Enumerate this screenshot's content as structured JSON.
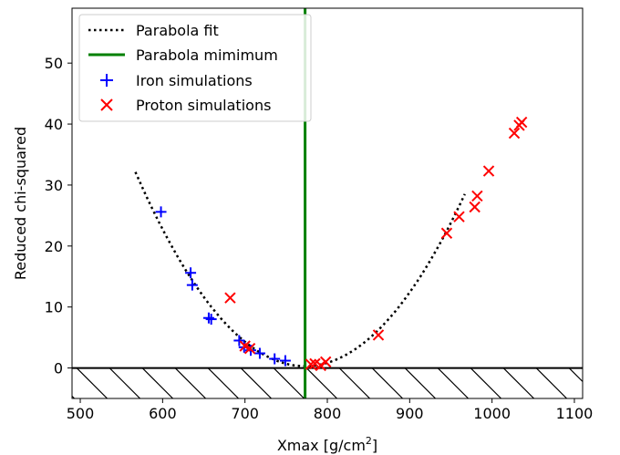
{
  "chart_data": {
    "type": "scatter",
    "title": "",
    "xlabel": "Xmax [g/cm",
    "xlabel_sup": "2",
    "xlabel_close": "]",
    "ylabel": "Reduced chi-squared",
    "xlim": [
      490,
      1110
    ],
    "ylim": [
      -5,
      59
    ],
    "xticks": [
      500,
      600,
      700,
      800,
      900,
      1000,
      1100
    ],
    "yticks": [
      0,
      10,
      20,
      30,
      40,
      50
    ],
    "legend_position": "top-left",
    "hatch_region_below": 0,
    "series": [
      {
        "name": "Parabola fit",
        "kind": "curve",
        "style": "dotted",
        "color": "#000000",
        "vertex_x": 773,
        "vertex_y": 0.3,
        "curvature": 0.00075,
        "x_range": [
          567,
          967
        ]
      },
      {
        "name": "Parabola mimimum",
        "kind": "vline",
        "color": "#008000",
        "x": 773
      },
      {
        "name": "Iron simulations",
        "kind": "marker",
        "marker": "plus",
        "color": "#0000ff",
        "points": [
          [
            598,
            25.6
          ],
          [
            634,
            15.6
          ],
          [
            636,
            13.6
          ],
          [
            656,
            8.2
          ],
          [
            659,
            8.0
          ],
          [
            693,
            4.5
          ],
          [
            699,
            3.4
          ],
          [
            707,
            2.9
          ],
          [
            718,
            2.4
          ],
          [
            736,
            1.5
          ],
          [
            749,
            1.2
          ]
        ]
      },
      {
        "name": "Proton simulations",
        "kind": "marker",
        "marker": "x",
        "color": "#ff0000",
        "points": [
          [
            682,
            11.5
          ],
          [
            700,
            3.6
          ],
          [
            706,
            3.2
          ],
          [
            780,
            0.6
          ],
          [
            785,
            0.7
          ],
          [
            792,
            0.4
          ],
          [
            798,
            1.0
          ],
          [
            862,
            5.4
          ],
          [
            945,
            22.1
          ],
          [
            960,
            24.8
          ],
          [
            979,
            26.4
          ],
          [
            982,
            28.2
          ],
          [
            996,
            32.3
          ],
          [
            1027,
            38.5
          ],
          [
            1033,
            39.8
          ],
          [
            1036,
            40.3
          ]
        ]
      }
    ]
  }
}
